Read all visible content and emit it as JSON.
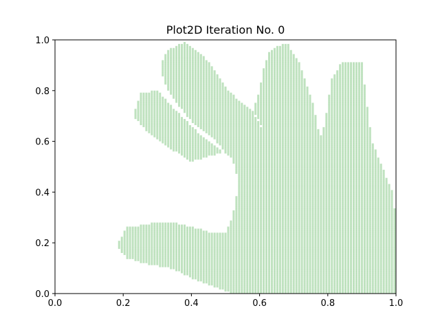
{
  "chart_data": {
    "type": "scatter",
    "title": "Plot2D Iteration No. 0",
    "xlabel": "",
    "ylabel": "",
    "xlim": [
      0.0,
      1.0
    ],
    "ylim": [
      0.0,
      1.0
    ],
    "xticks": [
      "0.0",
      "0.2",
      "0.4",
      "0.6",
      "0.8",
      "1.0"
    ],
    "yticks": [
      "0.0",
      "0.2",
      "0.4",
      "0.6",
      "0.8",
      "1.0"
    ],
    "grid": false,
    "marker_color": "#2ca02c",
    "marker_alpha": 0.3,
    "shape": "hand",
    "point_spacing": 0.008,
    "region_outline": [
      [
        1.0,
        0.0
      ],
      [
        0.52,
        0.0
      ],
      [
        0.42,
        0.05
      ],
      [
        0.34,
        0.1
      ],
      [
        0.26,
        0.12
      ],
      [
        0.21,
        0.14
      ],
      [
        0.18,
        0.19
      ],
      [
        0.21,
        0.26
      ],
      [
        0.3,
        0.28
      ],
      [
        0.35,
        0.28
      ],
      [
        0.41,
        0.26
      ],
      [
        0.46,
        0.24
      ],
      [
        0.5,
        0.24
      ],
      [
        0.52,
        0.3
      ],
      [
        0.54,
        0.44
      ],
      [
        0.52,
        0.53
      ],
      [
        0.44,
        0.61
      ],
      [
        0.37,
        0.7
      ],
      [
        0.3,
        0.8
      ],
      [
        0.25,
        0.79
      ],
      [
        0.23,
        0.7
      ],
      [
        0.27,
        0.64
      ],
      [
        0.34,
        0.57
      ],
      [
        0.4,
        0.52
      ],
      [
        0.45,
        0.54
      ],
      [
        0.5,
        0.56
      ],
      [
        0.46,
        0.62
      ],
      [
        0.4,
        0.68
      ],
      [
        0.35,
        0.76
      ],
      [
        0.32,
        0.83
      ],
      [
        0.31,
        0.9
      ],
      [
        0.33,
        0.96
      ],
      [
        0.38,
        0.99
      ],
      [
        0.44,
        0.93
      ],
      [
        0.48,
        0.86
      ],
      [
        0.51,
        0.8
      ],
      [
        0.54,
        0.76
      ],
      [
        0.58,
        0.72
      ],
      [
        0.6,
        0.68
      ],
      [
        0.62,
        0.62
      ],
      [
        0.6,
        0.67
      ],
      [
        0.58,
        0.72
      ],
      [
        0.6,
        0.8
      ],
      [
        0.61,
        0.88
      ],
      [
        0.63,
        0.96
      ],
      [
        0.68,
        0.99
      ],
      [
        0.72,
        0.9
      ],
      [
        0.74,
        0.82
      ],
      [
        0.76,
        0.74
      ],
      [
        0.77,
        0.66
      ],
      [
        0.78,
        0.62
      ],
      [
        0.79,
        0.66
      ],
      [
        0.8,
        0.74
      ],
      [
        0.81,
        0.84
      ],
      [
        0.84,
        0.91
      ],
      [
        0.9,
        0.91
      ],
      [
        0.91,
        0.8
      ],
      [
        0.92,
        0.7
      ],
      [
        0.93,
        0.6
      ],
      [
        0.96,
        0.5
      ],
      [
        0.99,
        0.4
      ],
      [
        1.0,
        0.3
      ]
    ]
  }
}
